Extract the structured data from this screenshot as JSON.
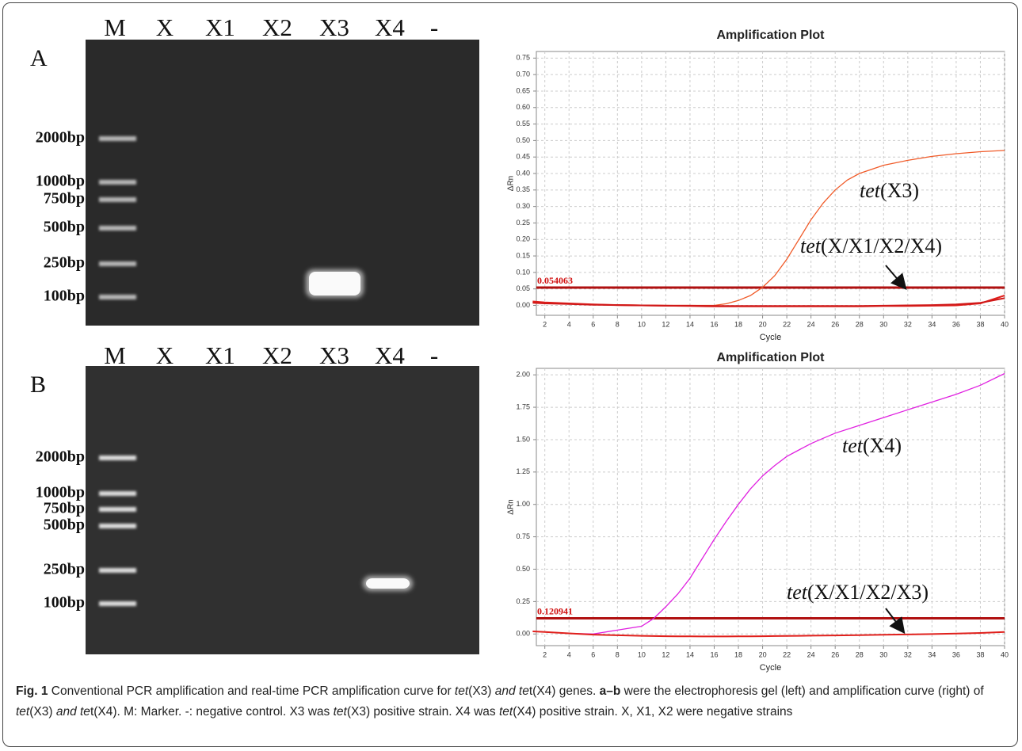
{
  "chart_data": [
    {
      "type": "line",
      "title": "Amplification Plot",
      "x_label": "Cycle",
      "y_label": "ΔRn",
      "x": [
        1,
        2,
        4,
        6,
        8,
        10,
        12,
        14,
        16,
        17,
        18,
        19,
        20,
        21,
        22,
        23,
        24,
        25,
        26,
        27,
        28,
        30,
        32,
        34,
        36,
        38,
        40
      ],
      "xlim": [
        1.3,
        40
      ],
      "xticks": [
        2,
        4,
        6,
        8,
        10,
        12,
        14,
        16,
        18,
        20,
        22,
        24,
        26,
        28,
        30,
        32,
        34,
        36,
        38,
        40
      ],
      "ylim": [
        -0.03,
        0.77
      ],
      "yticks": [
        {
          "value": 0,
          "label": "0.00"
        },
        {
          "value": 0.05,
          "label": "0.05"
        },
        {
          "value": 0.1,
          "label": "0.10"
        },
        {
          "value": 0.15,
          "label": "0.15"
        },
        {
          "value": 0.2,
          "label": "0.20"
        },
        {
          "value": 0.25,
          "label": "0.25"
        },
        {
          "value": 0.3,
          "label": "0.30"
        },
        {
          "value": 0.35,
          "label": "0.35"
        },
        {
          "value": 0.4,
          "label": "0.40"
        },
        {
          "value": 0.45,
          "label": "0.45"
        },
        {
          "value": 0.5,
          "label": "0.50"
        },
        {
          "value": 0.55,
          "label": "0.55"
        },
        {
          "value": 0.6,
          "label": "0.60"
        },
        {
          "value": 0.65,
          "label": "0.65"
        },
        {
          "value": 0.7,
          "label": "0.70"
        },
        {
          "value": 0.75,
          "label": "0.75"
        }
      ],
      "grid": true,
      "threshold": 0.054063,
      "threshold_color": "#b01010",
      "series": [
        {
          "color": "#f05a28",
          "values": [
            0.01,
            0.008,
            0.005,
            0.003,
            0.002,
            0.001,
            0,
            0,
            0,
            0.005,
            0.015,
            0.03,
            0.055,
            0.09,
            0.14,
            0.2,
            0.26,
            0.31,
            0.35,
            0.38,
            0.4,
            0.425,
            0.44,
            0.452,
            0.46,
            0.466,
            0.47
          ]
        },
        {
          "color": "#e0201c",
          "values": [
            0.012,
            0.009,
            0.006,
            0.003,
            0.001,
            0,
            -0.001,
            -0.002,
            -0.003,
            -0.003,
            -0.003,
            -0.003,
            -0.003,
            -0.003,
            -0.003,
            -0.003,
            -0.003,
            -0.003,
            -0.003,
            -0.003,
            -0.003,
            -0.002,
            -0.002,
            -0.001,
            0,
            0.006,
            0.03
          ]
        },
        {
          "color": "#d01818",
          "values": [
            0.008,
            0.006,
            0.004,
            0.002,
            0.001,
            0,
            -0.001,
            -0.001,
            -0.002,
            -0.002,
            -0.002,
            -0.002,
            -0.002,
            -0.002,
            -0.002,
            -0.002,
            -0.002,
            -0.002,
            -0.002,
            -0.002,
            -0.002,
            -0.001,
            0,
            0.001,
            0.003,
            0.008,
            0.022
          ]
        }
      ],
      "annotations": [
        [
          "tet",
          "(X3)"
        ],
        [
          "tet",
          "(X/X1/X2/X4)"
        ]
      ]
    },
    {
      "type": "line",
      "title": "Amplification Plot",
      "x_label": "Cycle",
      "y_label": "ΔRn",
      "x": [
        1,
        2,
        4,
        6,
        8,
        10,
        11,
        12,
        13,
        14,
        15,
        16,
        17,
        18,
        19,
        20,
        21,
        22,
        23,
        24,
        25,
        26,
        28,
        30,
        32,
        34,
        36,
        38,
        40
      ],
      "xlim": [
        1.3,
        40
      ],
      "xticks": [
        2,
        4,
        6,
        8,
        10,
        12,
        14,
        16,
        18,
        20,
        22,
        24,
        26,
        28,
        30,
        32,
        34,
        36,
        38,
        40
      ],
      "ylim": [
        -0.09,
        2.05
      ],
      "yticks": [
        {
          "value": 0,
          "label": "0.00"
        },
        {
          "value": 0.25,
          "label": "0.25"
        },
        {
          "value": 0.5,
          "label": "0.50"
        },
        {
          "value": 0.75,
          "label": "0.75"
        },
        {
          "value": 1,
          "label": "1.00"
        },
        {
          "value": 1.25,
          "label": "1.25"
        },
        {
          "value": 1.5,
          "label": "1.50"
        },
        {
          "value": 1.75,
          "label": "1.75"
        },
        {
          "value": 2,
          "label": "2.00"
        }
      ],
      "grid": true,
      "threshold": 0.120941,
      "threshold_color": "#b01010",
      "series": [
        {
          "color": "#e020e0",
          "values": [
            0.02,
            0.015,
            0.005,
            0,
            0.03,
            0.06,
            0.12,
            0.21,
            0.31,
            0.43,
            0.58,
            0.73,
            0.87,
            1.0,
            1.12,
            1.22,
            1.3,
            1.37,
            1.42,
            1.47,
            1.51,
            1.55,
            1.61,
            1.67,
            1.73,
            1.79,
            1.85,
            1.92,
            2.01
          ]
        },
        {
          "color": "#e0201c",
          "values": [
            0.02,
            0.015,
            0.005,
            -0.005,
            -0.01,
            -0.014,
            -0.016,
            -0.017,
            -0.018,
            -0.018,
            -0.019,
            -0.019,
            -0.019,
            -0.018,
            -0.018,
            -0.017,
            -0.016,
            -0.015,
            -0.014,
            -0.013,
            -0.012,
            -0.011,
            -0.009,
            -0.006,
            -0.004,
            -0.001,
            0.003,
            0.008,
            0.015
          ]
        }
      ],
      "annotations": [
        [
          "tet",
          "(X4)"
        ],
        [
          "tet",
          "(X/X1/X2/X3)"
        ]
      ]
    }
  ],
  "gels": [
    {
      "letter": "A",
      "lanes": [
        "M",
        "X",
        "X1",
        "X2",
        "X3",
        "X4",
        "-"
      ],
      "sizes": [
        "2000bp",
        "1000bp",
        "750bp",
        "500bp",
        "250bp",
        "100bp"
      ]
    },
    {
      "letter": "B",
      "lanes": [
        "M",
        "X",
        "X1",
        "X2",
        "X3",
        "X4",
        "-"
      ],
      "sizes": [
        "2000bp",
        "1000bp",
        "750bp",
        "500bp",
        "250bp",
        "100bp"
      ]
    }
  ],
  "caption": [
    "Fig. 1",
    " Conventional PCR amplification and real-time PCR amplification curve for ",
    "tet",
    "(X3) ",
    "and te",
    "t(X4) genes. ",
    "a–b",
    " were the electrophoresis gel (left) and amplification curve (right) of ",
    "tet",
    "(X3) ",
    "and te",
    "t(X4). M: Marker. -: negative control. X3 was ",
    "tet",
    "(X3) positive strain. X4 was ",
    "tet",
    "(X4) positive strain. X, X1, X2 were negative strains"
  ]
}
